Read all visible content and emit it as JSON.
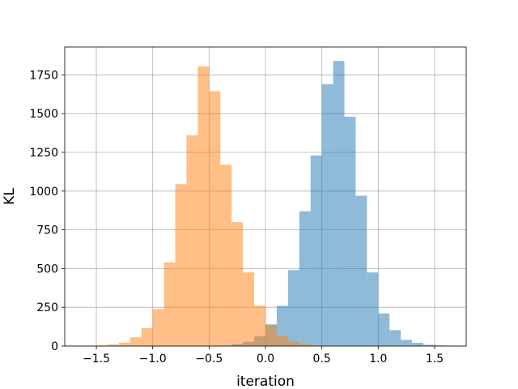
{
  "chart_data": {
    "type": "bar",
    "title": "",
    "xlabel": "iteration",
    "ylabel": "KL",
    "xlim": [
      -1.78,
      1.78
    ],
    "ylim": [
      0,
      1930
    ],
    "xticks": [
      -1.5,
      -1.0,
      -0.5,
      0.0,
      0.5,
      1.0,
      1.5
    ],
    "xtick_labels": [
      "−1.5",
      "−1.0",
      "−0.5",
      "0.0",
      "0.5",
      "1.0",
      "1.5"
    ],
    "yticks": [
      0,
      250,
      500,
      750,
      1000,
      1250,
      1500,
      1750
    ],
    "ytick_labels": [
      "0",
      "250",
      "500",
      "750",
      "1000",
      "1250",
      "1500",
      "1750"
    ],
    "grid": true,
    "legend": "none",
    "bin_width": 0.1,
    "series": [
      {
        "color": "#1f77b4",
        "opacity": 0.5,
        "x_start": -0.4,
        "values": [
          3,
          12,
          28,
          63,
          140,
          260,
          490,
          870,
          1230,
          1690,
          1840,
          1480,
          970,
          475,
          210,
          103,
          40,
          21,
          8,
          4,
          2
        ]
      },
      {
        "color": "#ff7f0e",
        "opacity": 0.5,
        "x_start": -1.6,
        "values": [
          2,
          4,
          10,
          22,
          57,
          115,
          238,
          540,
          1045,
          1360,
          1805,
          1645,
          1170,
          800,
          475,
          260,
          135,
          63,
          28,
          11,
          4,
          2
        ]
      }
    ]
  }
}
